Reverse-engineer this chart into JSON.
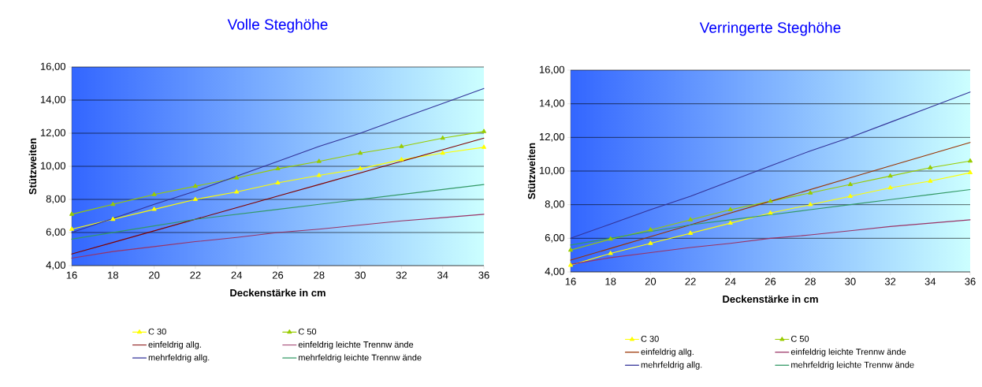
{
  "chart_data": [
    {
      "type": "line",
      "title": "Volle Steghöhe",
      "xlabel": "Deckenstärke in cm",
      "ylabel": "Stützweiten",
      "x": [
        16,
        18,
        20,
        22,
        24,
        26,
        28,
        30,
        32,
        34,
        36
      ],
      "xlim": [
        16,
        36
      ],
      "xticks": [
        16,
        18,
        20,
        22,
        24,
        26,
        28,
        30,
        32,
        34,
        36
      ],
      "ylim": [
        4,
        16
      ],
      "yticks": [
        {
          "value": 4,
          "label": "4,00"
        },
        {
          "value": 6,
          "label": "6,00"
        },
        {
          "value": 8,
          "label": "8,00"
        },
        {
          "value": 10,
          "label": "10,00"
        },
        {
          "value": 12,
          "label": "12,00"
        },
        {
          "value": 14,
          "label": "14,00"
        },
        {
          "value": 16,
          "label": "16,00"
        }
      ],
      "grid": "y",
      "legend": "bottom",
      "series": [
        {
          "name": "C 30",
          "color": "#ffff00",
          "marker": "triangle",
          "values": [
            6.2,
            6.8,
            7.4,
            8.0,
            8.45,
            9.0,
            9.45,
            9.85,
            10.4,
            10.8,
            11.15
          ]
        },
        {
          "name": "C 50",
          "color": "#99cc00",
          "marker": "triangle",
          "values": [
            7.1,
            7.7,
            8.3,
            8.8,
            9.3,
            9.85,
            10.3,
            10.8,
            11.2,
            11.7,
            12.1
          ]
        },
        {
          "name": "einfeldrig allg.",
          "color": "#800000",
          "marker": "none",
          "values": [
            4.7,
            5.4,
            6.1,
            6.8,
            7.5,
            8.2,
            8.9,
            9.6,
            10.3,
            11.0,
            11.7
          ]
        },
        {
          "name": "einfeldrig leichte Trennw ände",
          "color": "#993366",
          "marker": "none",
          "values": [
            4.45,
            4.85,
            5.15,
            5.45,
            5.7,
            6.0,
            6.2,
            6.45,
            6.7,
            6.9,
            7.1
          ]
        },
        {
          "name": "mehrfeldrig allg.",
          "color": "#333399",
          "marker": "none",
          "values": [
            6.0,
            6.85,
            7.7,
            8.5,
            9.4,
            10.3,
            11.2,
            12.0,
            12.9,
            13.8,
            14.7
          ]
        },
        {
          "name": "mehrfeldrig leichte Trennw ände",
          "color": "#339966",
          "marker": "none",
          "values": [
            5.6,
            6.0,
            6.4,
            6.8,
            7.1,
            7.4,
            7.7,
            8.0,
            8.3,
            8.6,
            8.9
          ]
        }
      ]
    },
    {
      "type": "line",
      "title": "Verringerte Steghöhe",
      "xlabel": "Deckenstärke in cm",
      "ylabel": "Stützweiten",
      "x": [
        16,
        18,
        20,
        22,
        24,
        26,
        28,
        30,
        32,
        34,
        36
      ],
      "xlim": [
        16,
        36
      ],
      "xticks": [
        16,
        18,
        20,
        22,
        24,
        26,
        28,
        30,
        32,
        34,
        36
      ],
      "ylim": [
        4,
        16
      ],
      "yticks": [
        {
          "value": 4,
          "label": "4,00"
        },
        {
          "value": 6,
          "label": "6,00"
        },
        {
          "value": 8,
          "label": "8,00"
        },
        {
          "value": 10,
          "label": "10,00"
        },
        {
          "value": 12,
          "label": "12,00"
        },
        {
          "value": 14,
          "label": "14,00"
        },
        {
          "value": 16,
          "label": "16,00"
        }
      ],
      "grid": "y",
      "legend": "bottom",
      "series": [
        {
          "name": "C 30",
          "color": "#ffff00",
          "marker": "triangle",
          "values": [
            4.4,
            5.1,
            5.7,
            6.3,
            6.9,
            7.5,
            8.0,
            8.5,
            9.0,
            9.4,
            9.9
          ]
        },
        {
          "name": "C 50",
          "color": "#99cc00",
          "marker": "triangle",
          "values": [
            5.3,
            5.95,
            6.5,
            7.1,
            7.7,
            8.2,
            8.7,
            9.2,
            9.7,
            10.2,
            10.6
          ]
        },
        {
          "name": "einfeldrig allg.",
          "color": "#993300",
          "marker": "none",
          "values": [
            4.7,
            5.4,
            6.1,
            6.8,
            7.5,
            8.2,
            8.9,
            9.6,
            10.3,
            11.0,
            11.7
          ]
        },
        {
          "name": "einfeldrig leichte Trennw ände",
          "color": "#993366",
          "marker": "none",
          "values": [
            4.45,
            4.85,
            5.15,
            5.45,
            5.7,
            6.0,
            6.2,
            6.45,
            6.7,
            6.9,
            7.1
          ]
        },
        {
          "name": "mehrfeldrig allg.",
          "color": "#333399",
          "marker": "none",
          "values": [
            6.0,
            6.85,
            7.7,
            8.5,
            9.4,
            10.3,
            11.2,
            12.0,
            12.9,
            13.8,
            14.7
          ]
        },
        {
          "name": "mehrfeldrig leichte Trennw ände",
          "color": "#339966",
          "marker": "none",
          "values": [
            5.6,
            6.0,
            6.4,
            6.8,
            7.1,
            7.4,
            7.7,
            8.0,
            8.3,
            8.6,
            8.9
          ]
        }
      ]
    }
  ]
}
